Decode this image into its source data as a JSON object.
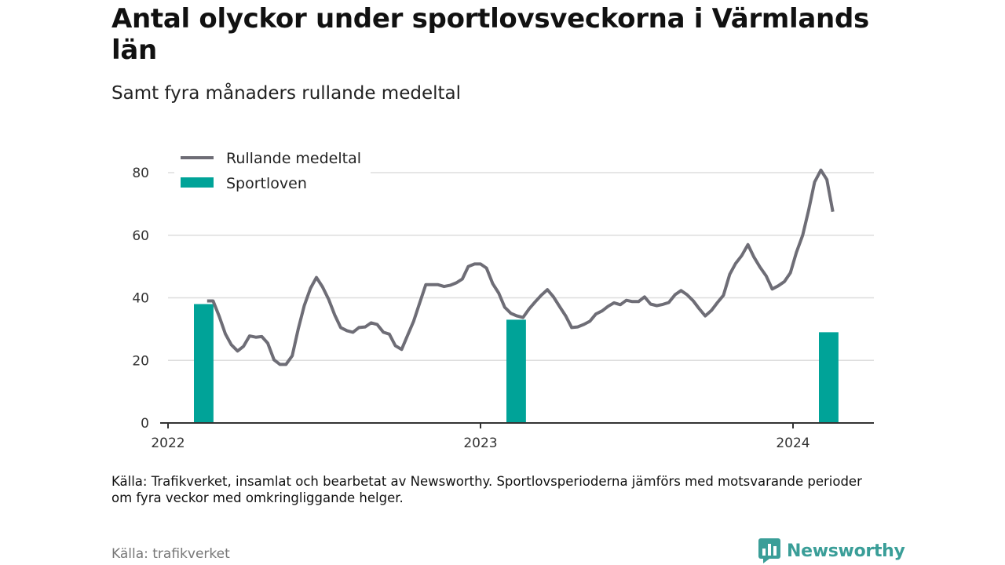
{
  "title": "Antal olyckor under sportlovsveckorna i Värmlands län",
  "subtitle": "Samt fyra månaders rullande medeltal",
  "note": "Källa: Trafikverket, insamlat och bearbetat av Newsworthy. Sportlovsperioderna jämförs med motsvarande perioder om fyra veckor med omkringliggande helger.",
  "source": "Källa: trafikverket",
  "brand": {
    "name": "Newsworthy",
    "icon": "newsworthy-logo-icon",
    "color": "#3a9e98"
  },
  "colors": {
    "line": "#6e6d76",
    "bar": "#00a398",
    "grid": "#dddddd",
    "axis": "#333333"
  },
  "chart_data": {
    "type": "bar+line",
    "legend": {
      "placement": "top-left",
      "entries": [
        {
          "label": "Rullande medeltal",
          "type": "line"
        },
        {
          "label": "Sportloven",
          "type": "bar"
        }
      ]
    },
    "x_ticks": [
      {
        "label": "2022",
        "x": 0
      },
      {
        "label": "2023",
        "x": 12
      },
      {
        "label": "2024",
        "x": 24
      }
    ],
    "xlim": [
      0,
      27
    ],
    "ylim": [
      0,
      85
    ],
    "y_ticks": [
      0,
      20,
      40,
      60,
      80
    ],
    "grid": true,
    "bars": {
      "name": "Sportloven",
      "width_months": 0.75,
      "points": [
        {
          "x": 1.37,
          "value": 38
        },
        {
          "x": 13.37,
          "value": 33
        },
        {
          "x": 25.37,
          "value": 29
        }
      ]
    },
    "line": {
      "name": "Rullande medeltal",
      "points": [
        [
          1.5,
          39
        ],
        [
          1.73,
          39
        ],
        [
          1.97,
          34
        ],
        [
          2.2,
          28.5
        ],
        [
          2.43,
          25
        ],
        [
          2.67,
          23
        ],
        [
          2.9,
          24.5
        ],
        [
          3.13,
          27.8
        ],
        [
          3.37,
          27.4
        ],
        [
          3.6,
          27.6
        ],
        [
          3.83,
          25.5
        ],
        [
          4.07,
          20.2
        ],
        [
          4.3,
          18.7
        ],
        [
          4.53,
          18.7
        ],
        [
          4.77,
          21.5
        ],
        [
          5.0,
          30
        ],
        [
          5.23,
          37.5
        ],
        [
          5.47,
          43
        ],
        [
          5.7,
          46.5
        ],
        [
          5.93,
          43.5
        ],
        [
          6.17,
          39.5
        ],
        [
          6.4,
          34.5
        ],
        [
          6.63,
          30.5
        ],
        [
          6.87,
          29.5
        ],
        [
          7.1,
          29
        ],
        [
          7.33,
          30.5
        ],
        [
          7.57,
          30.7
        ],
        [
          7.8,
          32
        ],
        [
          8.03,
          31.5
        ],
        [
          8.27,
          29
        ],
        [
          8.5,
          28.4
        ],
        [
          8.73,
          24.7
        ],
        [
          8.97,
          23.5
        ],
        [
          9.2,
          28
        ],
        [
          9.43,
          32.5
        ],
        [
          9.67,
          38.5
        ],
        [
          9.9,
          44.2
        ],
        [
          10.13,
          44.2
        ],
        [
          10.37,
          44.2
        ],
        [
          10.6,
          43.6
        ],
        [
          10.83,
          44
        ],
        [
          11.07,
          44.8
        ],
        [
          11.3,
          46
        ],
        [
          11.53,
          50
        ],
        [
          11.77,
          50.8
        ],
        [
          12.0,
          50.8
        ],
        [
          12.23,
          49.5
        ],
        [
          12.47,
          44.5
        ],
        [
          12.7,
          41.5
        ],
        [
          12.93,
          37
        ],
        [
          13.17,
          35
        ],
        [
          13.4,
          34.2
        ],
        [
          13.63,
          33.7
        ],
        [
          13.87,
          36.5
        ],
        [
          14.1,
          38.7
        ],
        [
          14.33,
          40.8
        ],
        [
          14.57,
          42.6
        ],
        [
          14.8,
          40.3
        ],
        [
          15.03,
          37.3
        ],
        [
          15.27,
          34.2
        ],
        [
          15.5,
          30.5
        ],
        [
          15.73,
          30.7
        ],
        [
          15.97,
          31.5
        ],
        [
          16.2,
          32.5
        ],
        [
          16.43,
          34.8
        ],
        [
          16.67,
          35.8
        ],
        [
          16.9,
          37.3
        ],
        [
          17.13,
          38.4
        ],
        [
          17.37,
          37.8
        ],
        [
          17.6,
          39.2
        ],
        [
          17.83,
          38.8
        ],
        [
          18.07,
          38.8
        ],
        [
          18.3,
          40.3
        ],
        [
          18.53,
          38
        ],
        [
          18.77,
          37.5
        ],
        [
          19.0,
          37.9
        ],
        [
          19.23,
          38.5
        ],
        [
          19.47,
          41
        ],
        [
          19.7,
          42.3
        ],
        [
          19.93,
          41
        ],
        [
          20.17,
          39
        ],
        [
          20.4,
          36.5
        ],
        [
          20.63,
          34.2
        ],
        [
          20.87,
          36
        ],
        [
          21.1,
          38.5
        ],
        [
          21.33,
          40.8
        ],
        [
          21.57,
          47.5
        ],
        [
          21.8,
          51
        ],
        [
          22.03,
          53.5
        ],
        [
          22.27,
          57
        ],
        [
          22.5,
          53
        ],
        [
          22.73,
          49.8
        ],
        [
          22.97,
          47
        ],
        [
          23.2,
          42.8
        ],
        [
          23.43,
          43.8
        ],
        [
          23.67,
          45.2
        ],
        [
          23.9,
          48
        ],
        [
          24.13,
          54.5
        ],
        [
          24.37,
          60
        ],
        [
          24.6,
          68
        ],
        [
          24.83,
          77
        ],
        [
          25.07,
          80.8
        ],
        [
          25.3,
          77.8
        ],
        [
          25.53,
          67.5
        ]
      ]
    }
  }
}
